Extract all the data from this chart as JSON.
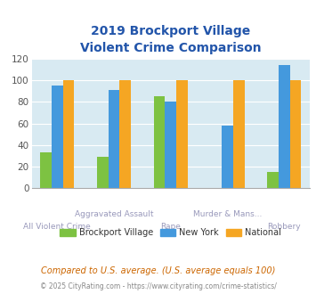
{
  "title_line1": "2019 Brockport Village",
  "title_line2": "Violent Crime Comparison",
  "title_color": "#2255aa",
  "categories": [
    "All Violent Crime",
    "Aggravated Assault",
    "Rape",
    "Murder & Mans...",
    "Robbery"
  ],
  "series": {
    "Brockport Village": [
      33,
      29,
      85,
      0,
      15
    ],
    "New York": [
      95,
      91,
      80,
      58,
      114
    ],
    "National": [
      100,
      100,
      100,
      100,
      100
    ]
  },
  "colors": {
    "Brockport Village": "#7dc242",
    "New York": "#4499dd",
    "National": "#f5a623"
  },
  "ylim": [
    0,
    120
  ],
  "yticks": [
    0,
    20,
    40,
    60,
    80,
    100,
    120
  ],
  "plot_bg": "#d8eaf2",
  "xlabel_color_row1": "#9999bb",
  "xlabel_color_row2": "#9999bb",
  "xlabel_fontsize": 7,
  "bar_width": 0.2,
  "note_text": "Compared to U.S. average. (U.S. average equals 100)",
  "note_color": "#cc6600",
  "credit_text": "© 2025 CityRating.com - https://www.cityrating.com/crime-statistics/",
  "credit_color_main": "#888888",
  "credit_color_link": "#4499dd"
}
